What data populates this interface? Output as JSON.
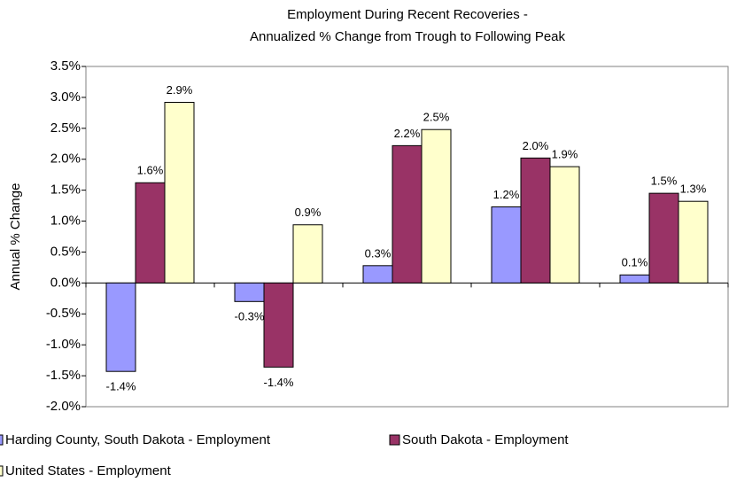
{
  "chart_data": {
    "type": "bar",
    "title": [
      "Employment During Recent Recoveries -",
      "Annualized % Change from Trough to Following Peak"
    ],
    "y_label": "Annual % Change",
    "categories": [
      null,
      null,
      null,
      null,
      null
    ],
    "series": [
      {
        "name": "Harding County, South Dakota - Employment",
        "color": "#9999ff",
        "values": [
          -1.43,
          -0.3,
          0.28,
          1.23,
          0.13
        ],
        "value_labels": [
          "-1.4%",
          "-0.3%",
          "0.3%",
          "1.2%",
          "0.1%"
        ]
      },
      {
        "name": "South Dakota - Employment",
        "color": "#993366",
        "values": [
          1.62,
          -1.36,
          2.22,
          2.02,
          1.45
        ],
        "value_labels": [
          "1.6%",
          "-1.4%",
          "2.2%",
          "2.0%",
          "1.5%"
        ]
      },
      {
        "name": "United States - Employment",
        "color": "#ffffcc",
        "values": [
          2.92,
          0.94,
          2.48,
          1.88,
          1.32
        ],
        "value_labels": [
          "2.9%",
          "0.9%",
          "2.5%",
          "1.9%",
          "1.3%"
        ]
      }
    ],
    "ylim": [
      -2.0,
      3.5
    ],
    "yticks": [
      {
        "value": -2.0,
        "label": "-2.0%"
      },
      {
        "value": -1.5,
        "label": "-1.5%"
      },
      {
        "value": -1.0,
        "label": "-1.0%"
      },
      {
        "value": -0.5,
        "label": "-0.5%"
      },
      {
        "value": 0.0,
        "label": "0.0%"
      },
      {
        "value": 0.5,
        "label": "0.5%"
      },
      {
        "value": 1.0,
        "label": "1.0%"
      },
      {
        "value": 1.5,
        "label": "1.5%"
      },
      {
        "value": 2.0,
        "label": "2.0%"
      },
      {
        "value": 2.5,
        "label": "2.5%"
      },
      {
        "value": 3.0,
        "label": "3.0%"
      },
      {
        "value": 3.5,
        "label": "3.5%"
      }
    ],
    "grid": false
  }
}
